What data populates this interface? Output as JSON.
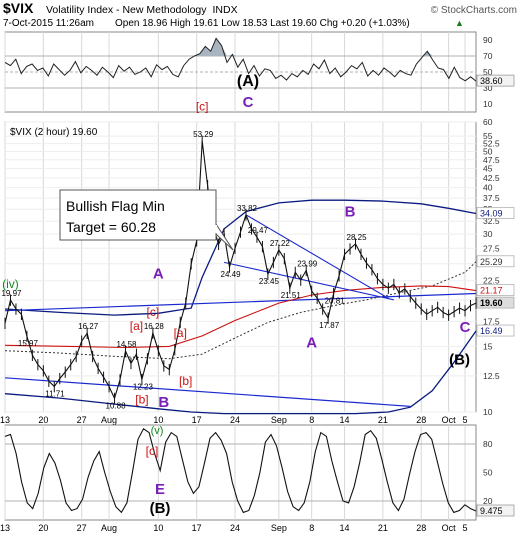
{
  "header": {
    "symbol": "$VIX",
    "name": "Volatility Index - New Methodology",
    "exchange": "INDX",
    "brand": "© StockCharts.com",
    "date_time": "7-Oct-2015 11:26am",
    "quote": "Open 18.96  High 19.61  Low 18.53  Last 19.60  Chg +0.20 (+1.03%)",
    "quote_arrow": "▲"
  },
  "chart_data": [
    {
      "type": "line",
      "panel": "rsi-top",
      "ylim": [
        0,
        100
      ],
      "y_ticks": [
        10,
        30,
        50,
        70,
        90
      ],
      "reference_lines": [
        30,
        50,
        70
      ],
      "last_value": 38.6,
      "last_label": "38.60",
      "colors": {
        "line": "#222222",
        "fill": "#a8b4c0",
        "box": "#f3f3f3"
      },
      "annotations": [
        {
          "text": "(A)",
          "color": "#000000"
        },
        {
          "text": "C",
          "color": "#7a1fb8"
        }
      ],
      "x_labels": [],
      "values": [
        62,
        58,
        66,
        48,
        57,
        60,
        52,
        55,
        45,
        60,
        53,
        46,
        52,
        63,
        49,
        57,
        52,
        46,
        56,
        50,
        43,
        58,
        51,
        56,
        47,
        50,
        55,
        44,
        59,
        53,
        57,
        47,
        44,
        58,
        66,
        70,
        73,
        82,
        76,
        92,
        83,
        62,
        72,
        56,
        66,
        48,
        58,
        45,
        54,
        52,
        42,
        46,
        40,
        48,
        44,
        52,
        47,
        60,
        54,
        65,
        48,
        55,
        44,
        50,
        58,
        54,
        62,
        45,
        52,
        46,
        55,
        50,
        44,
        52,
        48,
        46,
        60,
        68,
        76,
        65,
        55,
        53,
        42,
        56,
        43,
        39,
        44,
        38.6
      ]
    },
    {
      "type": "line",
      "panel": "price",
      "title": "$VIX (2 hour) 19.60",
      "ylim": [
        10,
        60
      ],
      "y_scale": "log",
      "y_ticks": [
        10,
        12.5,
        15,
        17.5,
        20,
        22.5,
        25,
        27.5,
        30,
        32.5,
        35,
        37.5,
        40,
        42.5,
        45,
        47.5,
        50,
        52.5,
        55,
        60
      ],
      "x_labels": [
        "13",
        "20",
        "27",
        "Aug",
        "10",
        "17",
        "24",
        "Sep",
        "8",
        "14",
        "21",
        "28",
        "Oct",
        "5"
      ],
      "x_tick_positions": [
        0,
        7,
        14,
        19,
        28,
        35,
        42,
        50,
        56,
        62,
        69,
        76,
        81,
        84
      ],
      "colors": {
        "price": "#111111",
        "sma50": "#cc1111",
        "sma200": "#333333",
        "bands": "#0a1a80",
        "trend": "#1a2ad0",
        "wave_purple": "#7a1fb8",
        "wave_red": "#cc1111",
        "wave_green": "#0a8a1a",
        "last_box": "#dddddd"
      },
      "series": [
        {
          "name": "price",
          "x": [
            0,
            1,
            2,
            3,
            4,
            5,
            6,
            7,
            8,
            9,
            10,
            11,
            12,
            13,
            14,
            15,
            16,
            17,
            18,
            19,
            20,
            21,
            22,
            23,
            24,
            25,
            26,
            27,
            28,
            29,
            30,
            31,
            32,
            33,
            34,
            35,
            36,
            37,
            38,
            39,
            40,
            41,
            42,
            43,
            44,
            45,
            46,
            47,
            48,
            49,
            50,
            51,
            52,
            53,
            54,
            55,
            56,
            57,
            58,
            59,
            60,
            61,
            62,
            63,
            64,
            65,
            66,
            67,
            68,
            69,
            70,
            71,
            72,
            73,
            74,
            75,
            76,
            77,
            78,
            79,
            80,
            81,
            82,
            83,
            84,
            85,
            86
          ],
          "y": [
            17.3,
            19.97,
            18.9,
            18.3,
            15.97,
            14.2,
            13.4,
            12.9,
            12.1,
            11.71,
            12.3,
            12.8,
            13.4,
            14.1,
            15.5,
            16.27,
            14.1,
            13.1,
            12.4,
            11.7,
            10.88,
            12.2,
            14.58,
            13.5,
            14.3,
            12.23,
            13.9,
            16.28,
            14.6,
            13.3,
            13.0,
            14.7,
            17.4,
            19.6,
            25.0,
            28.8,
            53.29,
            40.5,
            31.5,
            28.2,
            30.1,
            24.49,
            27.5,
            30.4,
            33.82,
            31.0,
            29.47,
            27.8,
            23.45,
            25.2,
            27.22,
            25.8,
            21.51,
            23.7,
            22.6,
            23.99,
            21.1,
            20.2,
            18.9,
            17.87,
            20.81,
            23.2,
            26.5,
            27.4,
            28.25,
            26.5,
            25.1,
            24.1,
            22.8,
            22.0,
            21.5,
            22.0,
            20.9,
            21.4,
            20.4,
            19.6,
            18.9,
            18.3,
            18.7,
            19.1,
            18.5,
            18.2,
            18.6,
            19.0,
            18.7,
            19.3,
            19.6
          ]
        },
        {
          "name": "sma50",
          "x": [
            0,
            12,
            22,
            30,
            36,
            42,
            50,
            56,
            62,
            69,
            76,
            81,
            86
          ],
          "y": [
            15.1,
            15.0,
            14.9,
            15.0,
            16.0,
            17.6,
            19.6,
            20.6,
            21.2,
            21.6,
            21.8,
            21.7,
            21.17
          ]
        },
        {
          "name": "sma200",
          "x": [
            0,
            10,
            20,
            30,
            36,
            42,
            48,
            54,
            60,
            66,
            72,
            78,
            84,
            86
          ],
          "y": [
            14.6,
            14.4,
            14.1,
            13.9,
            14.3,
            15.8,
            17.4,
            18.5,
            19.3,
            20.0,
            20.9,
            21.8,
            23.7,
            25.29
          ]
        },
        {
          "name": "upper-band",
          "x": [
            0,
            10,
            20,
            28,
            34,
            36,
            40,
            44,
            50,
            56,
            62,
            69,
            76,
            81,
            86
          ],
          "y": [
            18.9,
            18.5,
            18.2,
            18.4,
            19.0,
            23.0,
            31.0,
            34.5,
            36.4,
            37.0,
            37.0,
            36.8,
            36.2,
            35.2,
            34.09
          ]
        },
        {
          "name": "lower-band",
          "x": [
            0,
            10,
            20,
            28,
            34,
            40,
            46,
            52,
            58,
            64,
            70,
            74,
            78,
            82,
            86
          ],
          "y": [
            11.2,
            10.9,
            10.5,
            10.2,
            10.0,
            9.9,
            9.9,
            9.9,
            9.9,
            9.9,
            10.0,
            10.3,
            11.4,
            13.6,
            16.49
          ]
        },
        {
          "name": "trendline-top",
          "x": [
            0,
            86
          ],
          "y": [
            18.7,
            20.8
          ]
        },
        {
          "name": "trendline-bottom",
          "x": [
            0,
            74
          ],
          "y": [
            12.35,
            10.35
          ]
        },
        {
          "name": "flag-upper",
          "x": [
            44,
            70
          ],
          "y": [
            33.82,
            20.2
          ]
        },
        {
          "name": "flag-lower",
          "x": [
            40,
            71
          ],
          "y": [
            25.2,
            20.0
          ]
        }
      ],
      "value_labels": [
        {
          "x": 1,
          "y": 19.97,
          "text": "19.97"
        },
        {
          "x": 4,
          "y": 15.97,
          "text": "15.97"
        },
        {
          "x": 9,
          "y": 11.71,
          "text": "11.71"
        },
        {
          "x": 15,
          "y": 16.27,
          "text": "16.27"
        },
        {
          "x": 20,
          "y": 10.88,
          "text": "10.88"
        },
        {
          "x": 22,
          "y": 14.58,
          "text": "14.58"
        },
        {
          "x": 25,
          "y": 12.23,
          "text": "12.23"
        },
        {
          "x": 27,
          "y": 16.28,
          "text": "16.28"
        },
        {
          "x": 36,
          "y": 53.29,
          "text": "53.29"
        },
        {
          "x": 41,
          "y": 24.49,
          "text": "24.49"
        },
        {
          "x": 44,
          "y": 33.82,
          "text": "33.82"
        },
        {
          "x": 46,
          "y": 29.47,
          "text": "29.47"
        },
        {
          "x": 48,
          "y": 23.45,
          "text": "23.45"
        },
        {
          "x": 50,
          "y": 27.22,
          "text": "27.22"
        },
        {
          "x": 52,
          "y": 21.51,
          "text": "21.51"
        },
        {
          "x": 55,
          "y": 23.99,
          "text": "23.99"
        },
        {
          "x": 59,
          "y": 17.87,
          "text": "17.87"
        },
        {
          "x": 60,
          "y": 20.81,
          "text": "20.81"
        },
        {
          "x": 64,
          "y": 28.25,
          "text": "28.25"
        }
      ],
      "right_labels": [
        {
          "y": 34.09,
          "text": "34.09",
          "color": "#0a1a80",
          "bg": "#ffffff"
        },
        {
          "y": 25.29,
          "text": "25.29",
          "color": "#333333",
          "bg": "#ffffff"
        },
        {
          "y": 21.17,
          "text": "21.17",
          "color": "#cc1111",
          "bg": "#ffffff"
        },
        {
          "y": 19.6,
          "text": "19.60",
          "color": "#000000",
          "bg": "#dddddd"
        },
        {
          "y": 16.49,
          "text": "16.49",
          "color": "#0a1a80",
          "bg": "#ffffff"
        }
      ],
      "wave_labels": [
        {
          "text": "(iv)",
          "x": 1,
          "y": 21.5,
          "color": "#0a8a1a"
        },
        {
          "text": "A",
          "x": 28,
          "y": 22.8,
          "color": "#7a1fb8"
        },
        {
          "text": "[c]",
          "x": 27,
          "y": 18.1,
          "color": "#cc1111"
        },
        {
          "text": "[a]",
          "x": 24,
          "y": 16.6,
          "color": "#cc1111"
        },
        {
          "text": "[a]",
          "x": 32,
          "y": 15.9,
          "color": "#cc1111"
        },
        {
          "text": "[b]",
          "x": 33,
          "y": 11.8,
          "color": "#cc1111"
        },
        {
          "text": "[b]",
          "x": 25,
          "y": 10.55,
          "color": "#cc1111"
        },
        {
          "text": "B",
          "x": 29,
          "y": 10.3,
          "color": "#7a1fb8"
        },
        {
          "text": "[c]",
          "x": 36,
          "y": 64.5,
          "color": "#cc1111"
        },
        {
          "text": "B",
          "x": 63,
          "y": 33.5,
          "color": "#7a1fb8"
        },
        {
          "text": "A",
          "x": 56,
          "y": 14.9,
          "color": "#7a1fb8"
        },
        {
          "text": "C",
          "x": 84,
          "y": 16.4,
          "color": "#7a1fb8"
        },
        {
          "text": "(B)",
          "x": 83,
          "y": 13.4,
          "color": "#000000"
        }
      ],
      "callout": {
        "lines": [
          "Bullish Flag Min",
          "Target = 60.28"
        ]
      }
    },
    {
      "type": "line",
      "panel": "stoch-bottom",
      "ylim": [
        0,
        100
      ],
      "y_ticks": [
        20,
        50,
        80
      ],
      "reference_lines": [
        20,
        80
      ],
      "last_value": 9.47,
      "last_label": "9.475",
      "colors": {
        "line": "#111111",
        "box": "#f3f3f3"
      },
      "x_labels": [
        "13",
        "20",
        "27",
        "Aug",
        "10",
        "17",
        "24",
        "Sep",
        "8",
        "14",
        "21",
        "28",
        "Oct",
        "5"
      ],
      "annotations": [
        {
          "text": "(v)",
          "color": "#0a8a1a"
        },
        {
          "text": "[c]",
          "color": "#cc1111"
        },
        {
          "text": "E",
          "color": "#7a1fb8"
        },
        {
          "text": "(B)",
          "color": "#000000"
        }
      ],
      "values": [
        88,
        90,
        70,
        40,
        18,
        12,
        28,
        55,
        70,
        60,
        42,
        18,
        10,
        12,
        22,
        45,
        62,
        72,
        50,
        30,
        14,
        8,
        18,
        50,
        85,
        96,
        92,
        70,
        52,
        82,
        92,
        88,
        64,
        40,
        28,
        35,
        60,
        86,
        92,
        84,
        70,
        40,
        20,
        8,
        10,
        26,
        50,
        82,
        90,
        78,
        55,
        30,
        14,
        10,
        18,
        40,
        72,
        92,
        88,
        62,
        40,
        20,
        18,
        35,
        60,
        90,
        94,
        86,
        64,
        40,
        18,
        10,
        22,
        48,
        72,
        90,
        92,
        85,
        62,
        38,
        18,
        8,
        10,
        16,
        12,
        9.47
      ]
    }
  ]
}
